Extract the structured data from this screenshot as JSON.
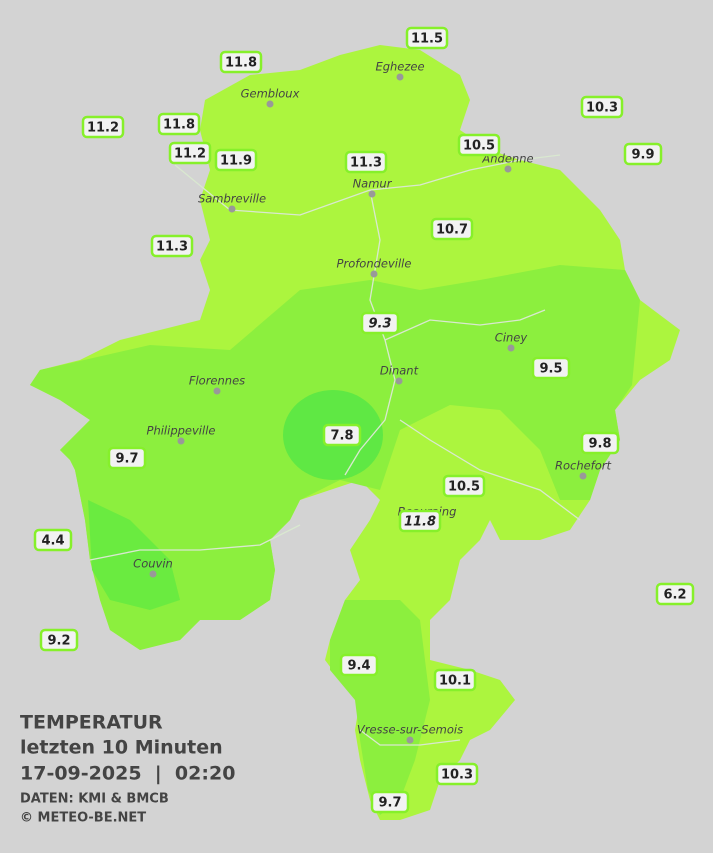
{
  "legend": {
    "title": "TEMPERATUR",
    "period": "letzten 10 Minuten",
    "datetime": "17-09-2025  |  02:20",
    "source": "DATEN: KMI & BMCB",
    "copyright": "© METEO-BE.NET"
  },
  "cities": [
    "Eghezee",
    "Gembloux",
    "Andenne",
    "Namur",
    "Sambreville",
    "Profondeville",
    "Ciney",
    "Dinant",
    "Florennes",
    "Philippeville",
    "Rochefort",
    "Beauraing",
    "Couvin",
    "Vresse-sur-Semois"
  ],
  "stations": [
    {
      "value": 11.5
    },
    {
      "value": 11.8
    },
    {
      "value": 11.2
    },
    {
      "value": 11.8
    },
    {
      "value": 11.2
    },
    {
      "value": 11.9
    },
    {
      "value": 11.3
    },
    {
      "value": 10.5
    },
    {
      "value": 10.3
    },
    {
      "value": 9.9
    },
    {
      "value": 11.3
    },
    {
      "value": 10.7
    },
    {
      "value": 9.3,
      "italic": true
    },
    {
      "value": 9.5
    },
    {
      "value": 7.8
    },
    {
      "value": 9.8
    },
    {
      "value": 9.7
    },
    {
      "value": 10.5
    },
    {
      "value": 11.8,
      "italic": true
    },
    {
      "value": 4.4
    },
    {
      "value": 6.2
    },
    {
      "value": 9.2
    },
    {
      "value": 9.4
    },
    {
      "value": 10.1
    },
    {
      "value": 10.3
    },
    {
      "value": 9.7
    }
  ]
}
